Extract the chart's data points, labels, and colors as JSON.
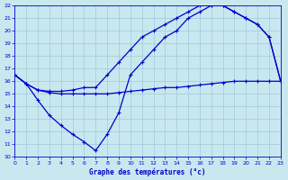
{
  "xlabel": "Graphe des températures (°c)",
  "bg_color": "#c8e8f0",
  "line_color": "#0000cc",
  "grid_color": "#a0c8d8",
  "xlim": [
    0,
    23
  ],
  "ylim": [
    10,
    22
  ],
  "xticks": [
    0,
    1,
    2,
    3,
    4,
    5,
    6,
    7,
    8,
    9,
    10,
    11,
    12,
    13,
    14,
    15,
    16,
    17,
    18,
    19,
    20,
    21,
    22,
    23
  ],
  "yticks": [
    10,
    11,
    12,
    13,
    14,
    15,
    16,
    17,
    18,
    19,
    20,
    21,
    22
  ],
  "line_flat_x": [
    0,
    1,
    2,
    3,
    4,
    5,
    6,
    7,
    8,
    9,
    10,
    11,
    12,
    13,
    14,
    15,
    16,
    17,
    18,
    19,
    20,
    21,
    22,
    23
  ],
  "line_flat_y": [
    16.5,
    15.8,
    15.3,
    15.1,
    15.0,
    15.0,
    15.0,
    15.0,
    15.0,
    15.1,
    15.2,
    15.3,
    15.4,
    15.5,
    15.5,
    15.6,
    15.7,
    15.8,
    15.9,
    16.0,
    16.0,
    16.0,
    16.0,
    16.0
  ],
  "line_up_x": [
    0,
    1,
    2,
    3,
    4,
    5,
    6,
    7,
    8,
    9,
    10,
    11,
    12,
    13,
    14,
    15,
    16,
    17,
    18,
    19,
    20,
    21,
    22,
    23
  ],
  "line_up_y": [
    16.5,
    15.8,
    15.3,
    15.2,
    15.2,
    15.3,
    15.5,
    15.5,
    16.5,
    17.5,
    18.5,
    19.5,
    20.0,
    20.5,
    21.0,
    21.5,
    22.0,
    22.0,
    22.0,
    21.5,
    21.0,
    20.5,
    19.5,
    16.0
  ],
  "line_low_x": [
    0,
    1,
    2,
    3,
    4,
    5,
    6,
    7,
    8,
    9,
    10,
    11,
    12,
    13,
    14,
    15,
    16,
    17,
    18,
    19,
    20,
    21,
    22,
    23
  ],
  "line_low_y": [
    16.5,
    15.8,
    14.5,
    13.3,
    12.5,
    11.8,
    11.2,
    10.5,
    11.8,
    13.5,
    16.5,
    17.5,
    18.5,
    19.5,
    20.0,
    21.0,
    21.5,
    22.0,
    22.0,
    21.5,
    21.0,
    20.5,
    19.5,
    16.0
  ]
}
